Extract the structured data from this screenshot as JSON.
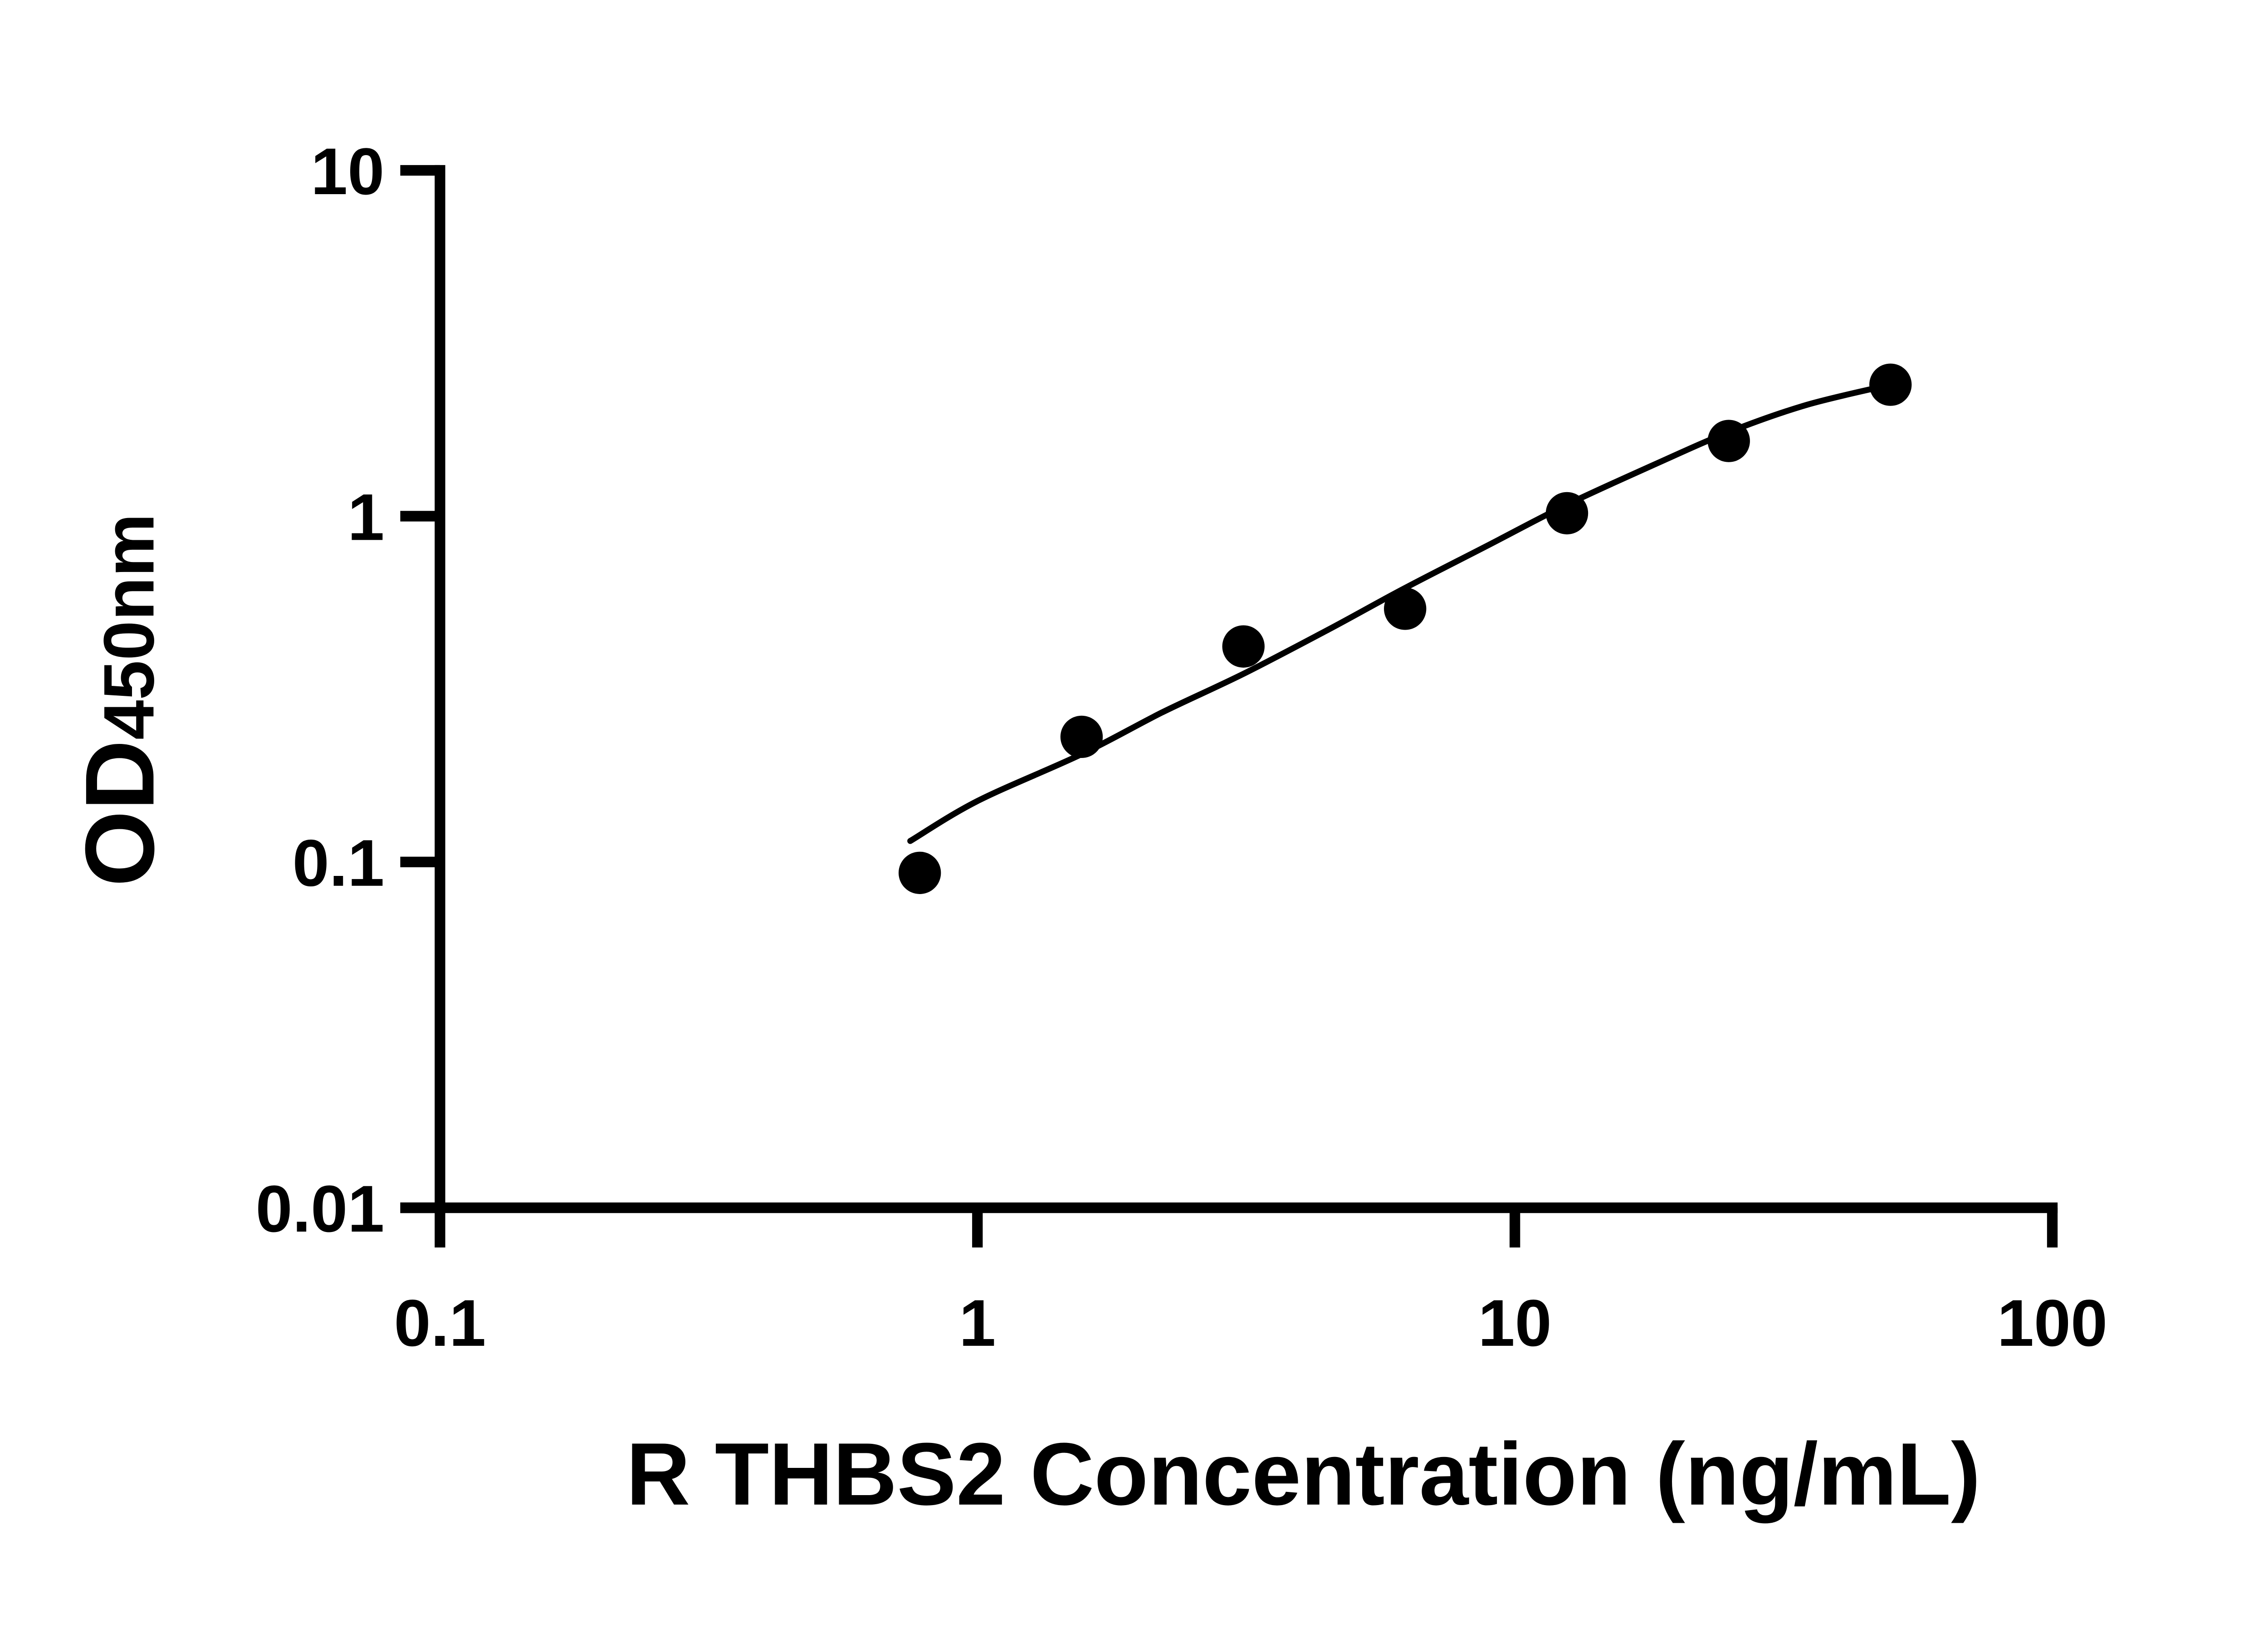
{
  "chart_data": {
    "type": "scatter",
    "title": "",
    "xlabel": "R THBS2 Concentration (ng/mL)",
    "ylabel": {
      "main": "OD",
      "sub": "450nm"
    },
    "x_scale": "log",
    "y_scale": "log",
    "xlim": [
      0.1,
      100
    ],
    "ylim": [
      0.01,
      10
    ],
    "x_ticks": [
      {
        "value": 0.1,
        "label": "0.1"
      },
      {
        "value": 1,
        "label": "1"
      },
      {
        "value": 10,
        "label": "10"
      },
      {
        "value": 100,
        "label": "100"
      }
    ],
    "y_ticks": [
      {
        "value": 10,
        "label": "10"
      },
      {
        "value": 1,
        "label": "1"
      },
      {
        "value": 0.1,
        "label": "0.1"
      },
      {
        "value": 0.01,
        "label": "0.01"
      }
    ],
    "grid": false,
    "legend": false,
    "background_color": "#ffffff",
    "axis_color": "#000000",
    "series": [
      {
        "name": "standard-curve-points",
        "marker": "circle",
        "color": "#000000",
        "points": [
          {
            "x": 0.78125,
            "y": 0.093
          },
          {
            "x": 1.5625,
            "y": 0.23
          },
          {
            "x": 3.125,
            "y": 0.42
          },
          {
            "x": 6.25,
            "y": 0.54
          },
          {
            "x": 12.5,
            "y": 1.02
          },
          {
            "x": 25,
            "y": 1.65
          },
          {
            "x": 50,
            "y": 2.4
          }
        ]
      }
    ],
    "fit_curve": {
      "name": "4PL-fit-line",
      "color": "#000000",
      "points": [
        [
          0.75,
          0.115
        ],
        [
          1.0,
          0.15
        ],
        [
          1.5625,
          0.205
        ],
        [
          2.2,
          0.27
        ],
        [
          3.125,
          0.35
        ],
        [
          4.5,
          0.47
        ],
        [
          6.25,
          0.62
        ],
        [
          9.0,
          0.83
        ],
        [
          12.5,
          1.08
        ],
        [
          18.0,
          1.4
        ],
        [
          25.0,
          1.75
        ],
        [
          35.0,
          2.1
        ],
        [
          50.0,
          2.4
        ]
      ]
    }
  }
}
